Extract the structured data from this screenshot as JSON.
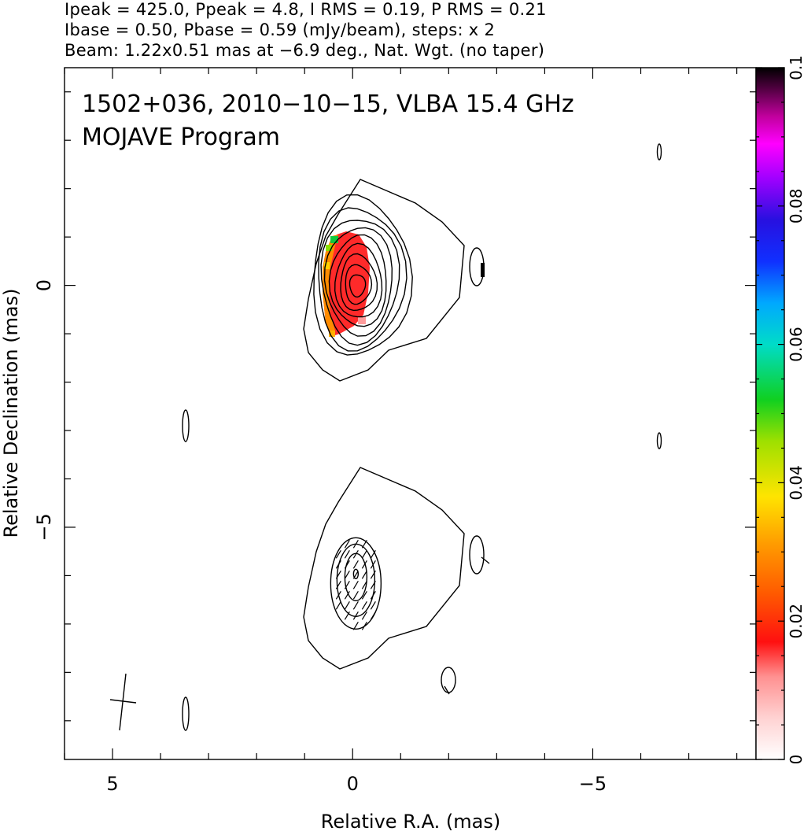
{
  "header": {
    "line1": "Ipeak = 425.0, Ppeak = 4.8, I RMS = 0.19, P RMS = 0.21",
    "line2": "Ibase = 0.50, Pbase = 0.59 (mJy/beam), steps: x 2",
    "line3": "Beam: 1.22x0.51 mas at −6.9 deg., Nat. Wgt. (no taper)"
  },
  "chart_data": {
    "type": "contour",
    "title": "1502+036, 2010−10−15, VLBA 15.4 GHz",
    "subtitle": "MOJAVE Program",
    "xlabel": "Relative R.A. (mas)",
    "ylabel": "Relative Declination (mas)",
    "xlim": [
      6,
      -8.4
    ],
    "ylim": [
      -9.8,
      4.5
    ],
    "xticks": [
      5,
      0,
      -5
    ],
    "xtick_labels": [
      "5",
      "0",
      "−5"
    ],
    "yticks": [
      0,
      -5
    ],
    "ytick_labels": [
      "0",
      "−5"
    ],
    "colorbar": {
      "range": [
        0,
        0.1
      ],
      "ticks": [
        0,
        0.02,
        0.04,
        0.06,
        0.08,
        0.1
      ],
      "tick_labels": [
        "0",
        "0.02",
        "0.04",
        "0.06",
        "0.08",
        "0.1"
      ]
    },
    "intensity_core": {
      "ra": -0.1,
      "dec": 0.0
    },
    "polarization_core": {
      "ra": -0.1,
      "dec": -5.9
    },
    "intensity_contour_levels_mJy": [
      0.5,
      1,
      2,
      4,
      8,
      16,
      32,
      64,
      128,
      256
    ],
    "beam": {
      "major_mas": 1.22,
      "minor_mas": 0.51,
      "pa_deg": -6.9,
      "ra": 4.8,
      "dec": -8.6
    }
  }
}
